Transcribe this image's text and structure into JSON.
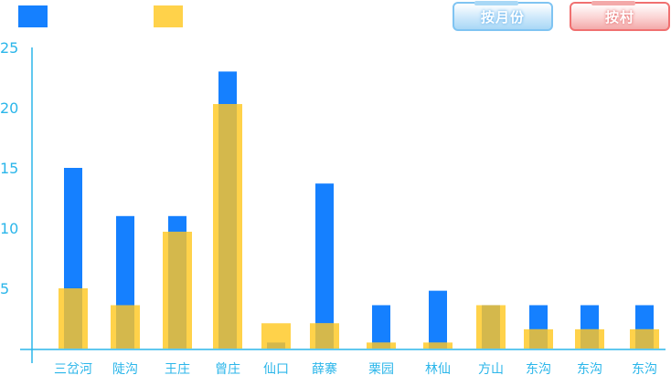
{
  "legend": {
    "items": [
      {
        "color": "#1580ff"
      },
      {
        "color": "#ffd24a"
      }
    ]
  },
  "toolbar": {
    "by_month_label": "按月份",
    "by_village_label": "按村"
  },
  "chart_data": {
    "type": "bar",
    "title": "",
    "xlabel": "",
    "ylabel": "",
    "ylim": [
      0,
      26
    ],
    "yticks": [
      5,
      10,
      15,
      20,
      25
    ],
    "categories": [
      "三岔河",
      "陡沟",
      "王庄",
      "曾庄",
      "仙口",
      "薛寨",
      "栗园",
      "林仙",
      "方山",
      "东沟",
      "东沟",
      "东沟"
    ],
    "series": [
      {
        "color": "#1580ff",
        "values": [
          15,
          11,
          11,
          23,
          0.5,
          13.7,
          3.6,
          4.8,
          3.6,
          3.6,
          3.6,
          3.6
        ]
      },
      {
        "color": "#ffd24a",
        "values": [
          5,
          3.6,
          9.7,
          20.3,
          2.1,
          2.1,
          0.5,
          0.5,
          3.6,
          1.6,
          1.6,
          1.6
        ]
      }
    ],
    "axis_color": "#2bb6ea",
    "overlap_color": "#d4b84c",
    "grid": false
  }
}
